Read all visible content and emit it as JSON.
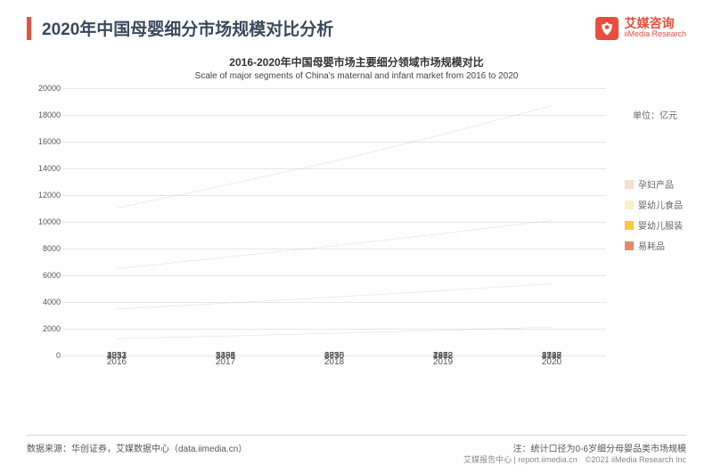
{
  "header": {
    "title": "2020年中国母婴细分市场规模对比分析",
    "accent_color": "#e94e3c",
    "title_color": "#3a4a5c"
  },
  "logo": {
    "cn": "艾媒咨询",
    "en": "iiMedia Research",
    "color": "#e94e3c"
  },
  "chart": {
    "type": "stacked-bar-with-lines",
    "title": "2016-2020年中国母婴市场主要细分领域市场规模对比",
    "subtitle": "Scale of major segments of China's maternal and infant market from 2016 to 2020",
    "unit_label": "单位：亿元",
    "ylim": [
      0,
      20000
    ],
    "ytick_step": 2000,
    "categories": [
      "2016",
      "2017",
      "2018",
      "2019",
      "2020"
    ],
    "series": [
      {
        "key": "consumables",
        "label": "易耗品",
        "color": "#e78a6b",
        "values": [
          1253,
          1451,
          1656,
          1882,
          2127
        ]
      },
      {
        "key": "apparel",
        "label": "婴幼儿服装",
        "color": "#f5c945",
        "values": [
          2212,
          2466,
          2710,
          2968,
          3235
        ]
      },
      {
        "key": "food",
        "label": "婴幼儿食品",
        "color": "#fceecb",
        "values": [
          3031,
          3435,
          3836,
          4272,
          4742
        ]
      },
      {
        "key": "maternity",
        "label": "孕妇产品",
        "color": "#f8dcd2",
        "values": [
          4532,
          5398,
          6335,
          7412,
          8598
        ]
      }
    ],
    "legend_order": [
      "maternity",
      "food",
      "apparel",
      "consumables"
    ],
    "bar_width_pct": 11,
    "title_fontsize": 12,
    "subtitle_fontsize": 10,
    "axis_fontsize": 9,
    "value_fontsize": 10,
    "grid_color": "#e5e5e5",
    "line_color": "#bfbfbf",
    "background_color": "#ffffff"
  },
  "footer": {
    "source": "数据来源：华创证券，艾媒数据中心（data.iimedia.cn）",
    "note": "注：统计口径为0-6岁细分母婴品类市场规模",
    "copyright": "艾媒报告中心 | report.iimedia.cn　©2021  iiMedia Research  Inc"
  }
}
